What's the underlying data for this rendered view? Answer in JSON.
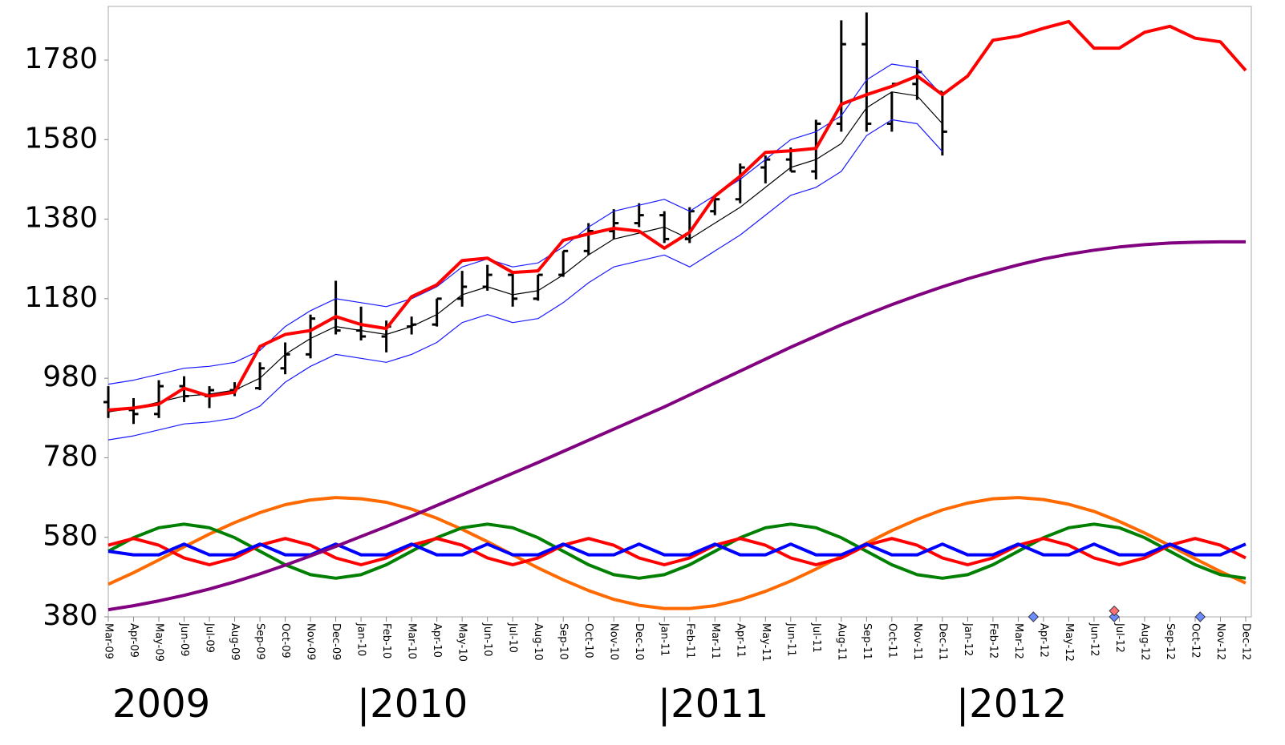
{
  "chart_data": {
    "type": "line",
    "categories": [
      "Mar-09",
      "Apr-09",
      "May-09",
      "Jun-09",
      "Jul-09",
      "Aug-09",
      "Sep-09",
      "Oct-09",
      "Nov-09",
      "Dec-09",
      "Jan-10",
      "Feb-10",
      "Mar-10",
      "Apr-10",
      "May-10",
      "Jun-10",
      "Jul-10",
      "Aug-10",
      "Sep-10",
      "Oct-10",
      "Nov-10",
      "Dec-10",
      "Jan-11",
      "Feb-11",
      "Mar-11",
      "Apr-11",
      "May-11",
      "Jun-11",
      "Jul-11",
      "Aug-11",
      "Sep-11",
      "Oct-11",
      "Nov-11",
      "Dec-11",
      "Jan-12",
      "Feb-12",
      "Mar-12",
      "Apr-12",
      "May-12",
      "Jun-12",
      "Jul-12",
      "Aug-12",
      "Sep-12",
      "Oct-12",
      "Nov-12",
      "Dec-12"
    ],
    "ylim": [
      380,
      1915
    ],
    "yticks": [
      380,
      580,
      780,
      980,
      1180,
      1380,
      1580,
      1780
    ],
    "year_labels": [
      "2009",
      "|2010",
      "|2011",
      "|2012"
    ],
    "series": [
      {
        "color": "#ff6a00",
        "values": [
          462,
          491,
          523,
          556,
          588,
          617,
          642,
          662,
          674,
          680,
          677,
          668,
          651,
          628,
          600,
          569,
          536,
          503,
          473,
          446,
          424,
          409,
          401,
          401,
          408,
          423,
          444,
          470,
          500,
          532,
          565,
          597,
          625,
          649,
          666,
          677,
          680,
          675,
          663,
          645,
          620,
          591,
          559,
          526,
          494,
          465
        ]
      },
      {
        "color": "#008000",
        "values": [
          545,
          579,
          604,
          613,
          604,
          579,
          545,
          511,
          486,
          477,
          486,
          511,
          545,
          579,
          604,
          613,
          604,
          579,
          545,
          511,
          486,
          477,
          486,
          511,
          545,
          579,
          604,
          613,
          604,
          579,
          545,
          511,
          486,
          477,
          486,
          511,
          545,
          579,
          604,
          613,
          604,
          579,
          545,
          511,
          486,
          477
        ]
      },
      {
        "color": "#ff0000",
        "values": [
          560,
          577,
          560,
          528,
          511,
          528,
          560,
          577,
          560,
          528,
          511,
          528,
          560,
          577,
          560,
          528,
          511,
          528,
          560,
          577,
          560,
          528,
          511,
          528,
          560,
          577,
          560,
          528,
          511,
          528,
          560,
          577,
          560,
          528,
          511,
          528,
          560,
          577,
          560,
          528,
          511,
          528,
          560,
          577,
          560,
          528
        ]
      },
      {
        "color": "#0000ff",
        "values": [
          545,
          536,
          536,
          563,
          536,
          536,
          563,
          536,
          536,
          563,
          536,
          536,
          563,
          536,
          536,
          563,
          536,
          536,
          563,
          536,
          536,
          563,
          536,
          536,
          563,
          536,
          536,
          563,
          536,
          536,
          563,
          536,
          536,
          563,
          536,
          536,
          563,
          536,
          536,
          563,
          536,
          536,
          563,
          536,
          536,
          563
        ]
      },
      {
        "color": "#800080",
        "values": [
          398,
          408,
          420,
          434,
          450,
          468,
          488,
          510,
          533,
          557,
          582,
          607,
          633,
          660,
          687,
          714,
          741,
          768,
          796,
          824,
          852,
          880,
          908,
          938,
          968,
          998,
          1028,
          1058,
          1086,
          1114,
          1140,
          1165,
          1188,
          1210,
          1230,
          1248,
          1265,
          1280,
          1292,
          1302,
          1310,
          1316,
          1320,
          1322,
          1323,
          1323
        ]
      },
      {
        "color": "#1a1aff",
        "values": [
          965,
          975,
          990,
          1005,
          1010,
          1020,
          1050,
          1110,
          1150,
          1180,
          1170,
          1160,
          1180,
          1210,
          1260,
          1280,
          1260,
          1270,
          1310,
          1360,
          1400,
          1415,
          1430,
          1400,
          1440,
          1480,
          1530,
          1580,
          1600,
          1640,
          1730,
          1770,
          1760,
          1690,
          null,
          null,
          null,
          null,
          null,
          null,
          null,
          null,
          null,
          null,
          null,
          null
        ]
      },
      {
        "color": "#1a1aff",
        "values": [
          825,
          835,
          850,
          865,
          870,
          880,
          910,
          970,
          1010,
          1040,
          1030,
          1020,
          1040,
          1070,
          1120,
          1140,
          1120,
          1130,
          1170,
          1220,
          1260,
          1275,
          1290,
          1260,
          1300,
          1340,
          1390,
          1440,
          1460,
          1500,
          1590,
          1630,
          1620,
          1550,
          null,
          null,
          null,
          null,
          null,
          null,
          null,
          null,
          null,
          null,
          null,
          null
        ]
      },
      {
        "color": "#000000",
        "values": [
          895,
          905,
          920,
          935,
          940,
          950,
          980,
          1040,
          1080,
          1110,
          1100,
          1090,
          1110,
          1140,
          1190,
          1210,
          1190,
          1200,
          1240,
          1290,
          1330,
          1345,
          1360,
          1330,
          1370,
          1410,
          1460,
          1510,
          1530,
          1570,
          1660,
          1700,
          1690,
          1620,
          null,
          null,
          null,
          null,
          null,
          null,
          null,
          null,
          null,
          null,
          null,
          null
        ]
      },
      {
        "color": "#ff0000",
        "values": [
          900,
          905,
          915,
          955,
          935,
          945,
          1060,
          1090,
          1100,
          1135,
          1115,
          1105,
          1185,
          1215,
          1276,
          1282,
          1246,
          1250,
          1327,
          1343,
          1357,
          1350,
          1307,
          1347,
          1438,
          1488,
          1548,
          1552,
          1558,
          1669,
          1693,
          1714,
          1740,
          1693,
          1740,
          1830,
          1840,
          1860,
          1877,
          1810,
          1810,
          1850,
          1865,
          1835,
          1826,
          1754
        ]
      }
    ],
    "ohlc": {
      "color": "#000000",
      "open": [
        920,
        900,
        890,
        960,
        935,
        950,
        955,
        1005,
        1040,
        1130,
        1100,
        1085,
        1110,
        1115,
        1180,
        1210,
        1240,
        1180,
        1240,
        1300,
        1350,
        1370,
        1390,
        1330,
        1400,
        1430,
        1510,
        1530,
        1500,
        1620,
        1820,
        1620,
        1720,
        1700
      ],
      "high": [
        960,
        930,
        975,
        985,
        960,
        970,
        1020,
        1070,
        1140,
        1225,
        1160,
        1125,
        1135,
        1180,
        1250,
        1265,
        1245,
        1240,
        1300,
        1370,
        1405,
        1420,
        1400,
        1410,
        1440,
        1520,
        1540,
        1560,
        1630,
        1880,
        1900,
        1700,
        1780,
        1700
      ],
      "low": [
        880,
        865,
        880,
        920,
        905,
        935,
        950,
        990,
        1030,
        1090,
        1075,
        1045,
        1090,
        1110,
        1160,
        1200,
        1160,
        1175,
        1235,
        1290,
        1330,
        1360,
        1320,
        1320,
        1390,
        1420,
        1470,
        1500,
        1480,
        1600,
        1600,
        1600,
        1680,
        1540
      ],
      "close": [
        900,
        890,
        960,
        935,
        950,
        955,
        1005,
        1040,
        1130,
        1100,
        1085,
        1110,
        1115,
        1180,
        1210,
        1240,
        1180,
        1240,
        1300,
        1350,
        1370,
        1390,
        1330,
        1400,
        1430,
        1510,
        1530,
        1500,
        1620,
        1820,
        1620,
        1720,
        1750,
        1600
      ]
    },
    "markers": {
      "x": [
        36.6,
        39.8,
        43.2,
        39.8
      ],
      "values": [
        380,
        380,
        380,
        395
      ],
      "colors": [
        "#6a8cff",
        "#6a8cff",
        "#6a8cff",
        "#ff7070"
      ]
    }
  }
}
